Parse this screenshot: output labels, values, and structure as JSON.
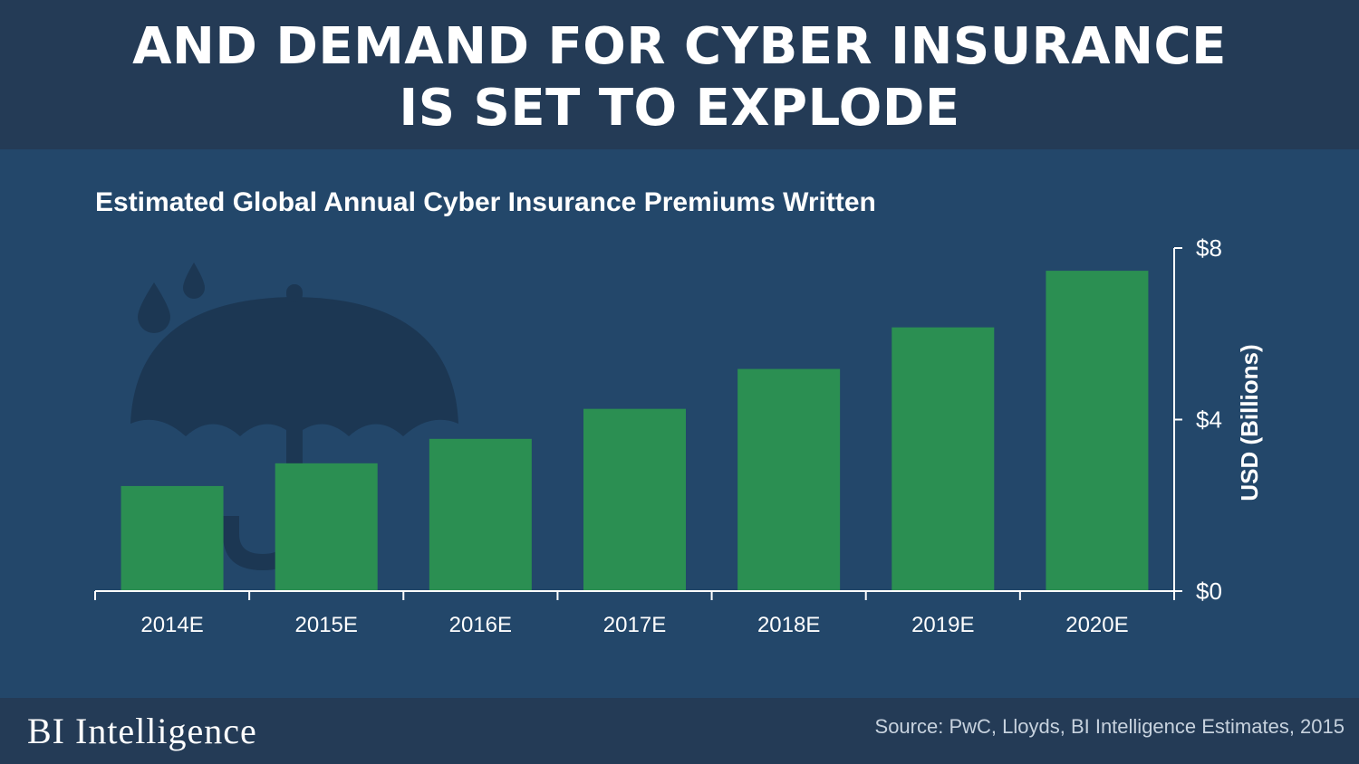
{
  "header": {
    "headline_line1": "AND DEMAND FOR CYBER INSURANCE",
    "headline_line2": "IS SET TO EXPLODE"
  },
  "chart_title": "Estimated Global Annual  Cyber Insurance Premiums Written",
  "footer": {
    "brand": "BI Intelligence",
    "source": "Source: PwC, Lloyds, BI Intelligence Estimates, 2015"
  },
  "colors": {
    "bar": "#2b8f52",
    "axis": "#ffffff",
    "illustration": "#1c3753"
  },
  "icons": [
    "umbrella-icon",
    "raindrop-icon"
  ],
  "chart_data": {
    "type": "bar",
    "title": "Estimated Global Annual  Cyber Insurance Premiums Written",
    "categories": [
      "2014E",
      "2015E",
      "2016E",
      "2017E",
      "2018E",
      "2019E",
      "2020E"
    ],
    "values": [
      2.45,
      2.98,
      3.55,
      4.25,
      5.18,
      6.15,
      7.47
    ],
    "xlabel": "",
    "ylabel": "USD (Billions)",
    "ylim": [
      0,
      8
    ],
    "yticks": [
      0,
      4,
      8
    ],
    "ytick_labels": [
      "$0",
      "$4",
      "$8"
    ],
    "y_axis_side": "right",
    "grid": false,
    "legend": "none"
  }
}
